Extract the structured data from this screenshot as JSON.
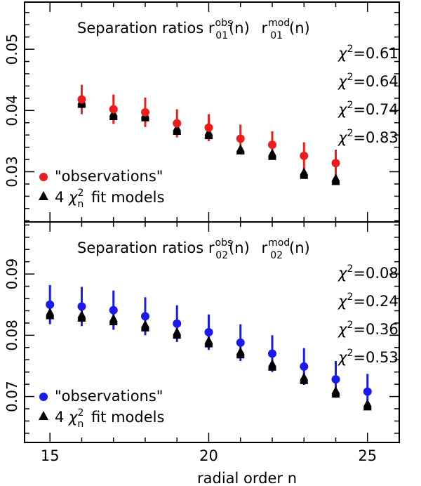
{
  "figure": {
    "xlabel": "radial order n"
  },
  "chart_data": [
    {
      "type": "scatter",
      "title_prefix": "Separation ratios",
      "obs_sup": "obs",
      "mod_sup": "mod",
      "sub": "01",
      "title_suffix": "(n)",
      "xlabel": "radial order n",
      "ylabel": "",
      "xlim": [
        14.2,
        26.0
      ],
      "ylim": [
        0.0218,
        0.0577
      ],
      "xticks": [
        15,
        20,
        25
      ],
      "yticks_labeled": [
        0.03,
        0.04,
        0.05
      ],
      "ytick_labels": [
        "0.03",
        "0.04",
        "0.05"
      ],
      "color": "#ee1c1c",
      "chi2": [
        "=0.61",
        "=0.64",
        "=0.74",
        "=0.83"
      ],
      "legend_obs": "\"observations\"",
      "legend_models_pre": "4",
      "legend_models_post": "fit models",
      "series": [
        {
          "name": "\"observations\"",
          "x": [
            16,
            17,
            18,
            19,
            20,
            21,
            22,
            23,
            24
          ],
          "y": [
            0.0418,
            0.0402,
            0.0397,
            0.0379,
            0.0372,
            0.0354,
            0.0344,
            0.0326,
            0.0314
          ],
          "err": [
            0.0024,
            0.0024,
            0.0024,
            0.0023,
            0.0022,
            0.0023,
            0.0022,
            0.0022,
            0.0022
          ]
        },
        {
          "name": "4 chi2_n fit models",
          "x": [
            16,
            17,
            18,
            19,
            20,
            21,
            22,
            23,
            24
          ],
          "y": [
            [
              0.041,
              0.0412,
              0.0414,
              0.0416
            ],
            [
              0.039,
              0.0392,
              0.0394,
              0.0396
            ],
            [
              0.0388,
              0.039,
              0.0392,
              0.0394
            ],
            [
              0.0366,
              0.0368,
              0.037,
              0.0372
            ],
            [
              0.0359,
              0.0361,
              0.0363,
              0.0365
            ],
            [
              0.0334,
              0.0335,
              0.0337,
              0.0338
            ],
            [
              0.0325,
              0.0327,
              0.0329,
              0.0331
            ],
            [
              0.0294,
              0.0296,
              0.0298,
              0.03
            ],
            [
              0.0284,
              0.0286,
              0.0288,
              0.029
            ]
          ]
        }
      ]
    },
    {
      "type": "scatter",
      "title_prefix": "Separation ratios",
      "obs_sup": "obs",
      "mod_sup": "mod",
      "sub": "02",
      "title_suffix": "(n)",
      "xlabel": "radial order n",
      "ylabel": "",
      "xlim": [
        14.2,
        26.0
      ],
      "ylim": [
        0.0625,
        0.0985
      ],
      "xticks": [
        15,
        20,
        25
      ],
      "yticks_labeled": [
        0.07,
        0.08,
        0.09
      ],
      "ytick_labels": [
        "0.07",
        "0.08",
        "0.09"
      ],
      "color": "#1a1aee",
      "chi2": [
        "=0.08",
        "=0.24",
        "=0.36",
        "=0.53"
      ],
      "legend_obs": "\"observations\"",
      "legend_models_pre": "4",
      "legend_models_post": "fit models",
      "series": [
        {
          "name": "\"observations\"",
          "x": [
            15,
            16,
            17,
            18,
            19,
            20,
            21,
            22,
            23,
            24,
            25
          ],
          "y": [
            0.085,
            0.0847,
            0.0841,
            0.0831,
            0.0819,
            0.0805,
            0.0788,
            0.077,
            0.0749,
            0.0728,
            0.0708
          ],
          "err": [
            0.0032,
            0.0032,
            0.0032,
            0.0031,
            0.003,
            0.0029,
            0.003,
            0.003,
            0.003,
            0.003,
            0.0029
          ]
        },
        {
          "name": "4 chi2_n fit models",
          "x": [
            15,
            16,
            17,
            18,
            19,
            20,
            21,
            22,
            23,
            24,
            25
          ],
          "y": [
            [
              0.0832,
              0.0834,
              0.0836,
              0.0838
            ],
            [
              0.0828,
              0.083,
              0.0832,
              0.0834
            ],
            [
              0.0822,
              0.0824,
              0.0826,
              0.0828
            ],
            [
              0.0812,
              0.0814,
              0.0816,
              0.0818
            ],
            [
              0.08,
              0.0802,
              0.0804,
              0.0806
            ],
            [
              0.0786,
              0.0788,
              0.079,
              0.0792
            ],
            [
              0.0768,
              0.077,
              0.0772,
              0.0774
            ],
            [
              0.0748,
              0.075,
              0.0752,
              0.0754
            ],
            [
              0.0726,
              0.0728,
              0.073,
              0.0732
            ],
            [
              0.0704,
              0.0706,
              0.0708,
              0.071
            ],
            [
              0.0683,
              0.0685,
              0.0687,
              0.0689
            ]
          ]
        }
      ]
    }
  ]
}
